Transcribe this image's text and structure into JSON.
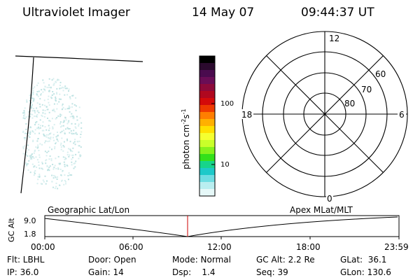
{
  "header": {
    "instrument": "Ultraviolet Imager",
    "date": "14 May 07",
    "time": "09:44:37 UT"
  },
  "colorbar": {
    "label": "photon cm",
    "label_sup1": "-2",
    "label_mid": "s",
    "label_sup2": "-1",
    "ticks": [
      "100",
      "10"
    ],
    "colors": [
      "#000000",
      "#2b0a2e",
      "#4a0b4e",
      "#6a0d56",
      "#8d0a3a",
      "#b0081f",
      "#d40a0a",
      "#ee3a00",
      "#ff7e00",
      "#ffb000",
      "#ffe000",
      "#f5ff30",
      "#c9ff2a",
      "#86f21c",
      "#34e01a",
      "#17d48a",
      "#1ec9c9",
      "#6fdde2",
      "#b9eef0",
      "#e6f8f8"
    ]
  },
  "polar": {
    "mlt_labels": {
      "top": "12",
      "left": "18",
      "right": "6",
      "bottom": "0"
    },
    "lat_labels": [
      "60",
      "70",
      "80"
    ]
  },
  "timeline": {
    "y_label": "GC Alt",
    "y_ticks": [
      "9.0",
      "1.8"
    ],
    "left_label": "Geographic Lat/Lon",
    "right_label": "Apex MLat/MLT",
    "x_ticks": [
      "00:00",
      "06:00",
      "12:00",
      "18:00",
      "23:59"
    ],
    "current_marker_color": "#cc0000"
  },
  "status": {
    "flt": "Flt: LBHL",
    "ip": "IP: 36.0",
    "door": "Door: Open",
    "gain": "Gain: 14",
    "mode": "Mode: Normal",
    "dsp": "Dsp:    1.4",
    "gc_alt": "GC Alt: 2.2 Re",
    "seq": "Seq: 39",
    "glat": "GLat:  36.1",
    "glon": "GLon: 130.6"
  }
}
